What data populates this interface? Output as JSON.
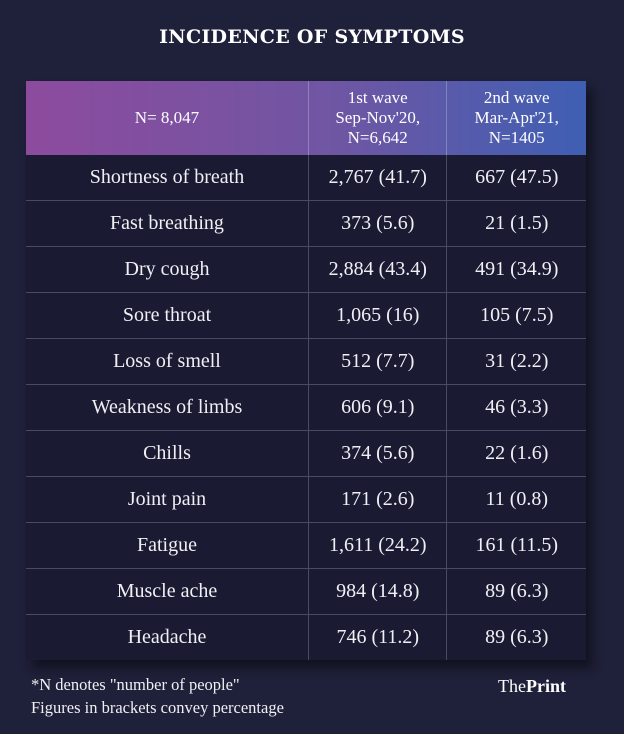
{
  "title": "INCIDENCE OF SYMPTOMS",
  "chart_data": {
    "type": "table",
    "title": "INCIDENCE OF SYMPTOMS",
    "columns": [
      {
        "lines": [
          "N= 8,047"
        ]
      },
      {
        "lines": [
          "1st wave",
          "Sep-Nov'20,",
          "N=6,642"
        ]
      },
      {
        "lines": [
          "2nd wave",
          "Mar-Apr'21,",
          "N=1405"
        ]
      }
    ],
    "rows": [
      [
        "Shortness of breath",
        "2,767 (41.7)",
        "667 (47.5)"
      ],
      [
        "Fast breathing",
        "373 (5.6)",
        "21 (1.5)"
      ],
      [
        "Dry cough",
        "2,884 (43.4)",
        "491 (34.9)"
      ],
      [
        "Sore throat",
        "1,065 (16)",
        "105 (7.5)"
      ],
      [
        "Loss of smell",
        "512 (7.7)",
        "31 (2.2)"
      ],
      [
        "Weakness of limbs",
        "606 (9.1)",
        "46 (3.3)"
      ],
      [
        "Chills",
        "374 (5.6)",
        "22 (1.6)"
      ],
      [
        "Joint pain",
        "171 (2.6)",
        "11 (0.8)"
      ],
      [
        "Fatigue",
        "1,611 (24.2)",
        "161 (11.5)"
      ],
      [
        "Muscle ache",
        "984 (14.8)",
        "89 (6.3)"
      ],
      [
        "Headache",
        "746 (11.2)",
        "89 (6.3)"
      ]
    ]
  },
  "notes": [
    "*N denotes \"number of people\"",
    "Figures in brackets convey percentage"
  ],
  "logo": {
    "pre": "The",
    "bold": "Print"
  },
  "colors": {
    "background": "#1f2039",
    "header_start": "#8d4b9e",
    "header_end": "#3f5fb3",
    "table_body": "#1a1b33"
  }
}
